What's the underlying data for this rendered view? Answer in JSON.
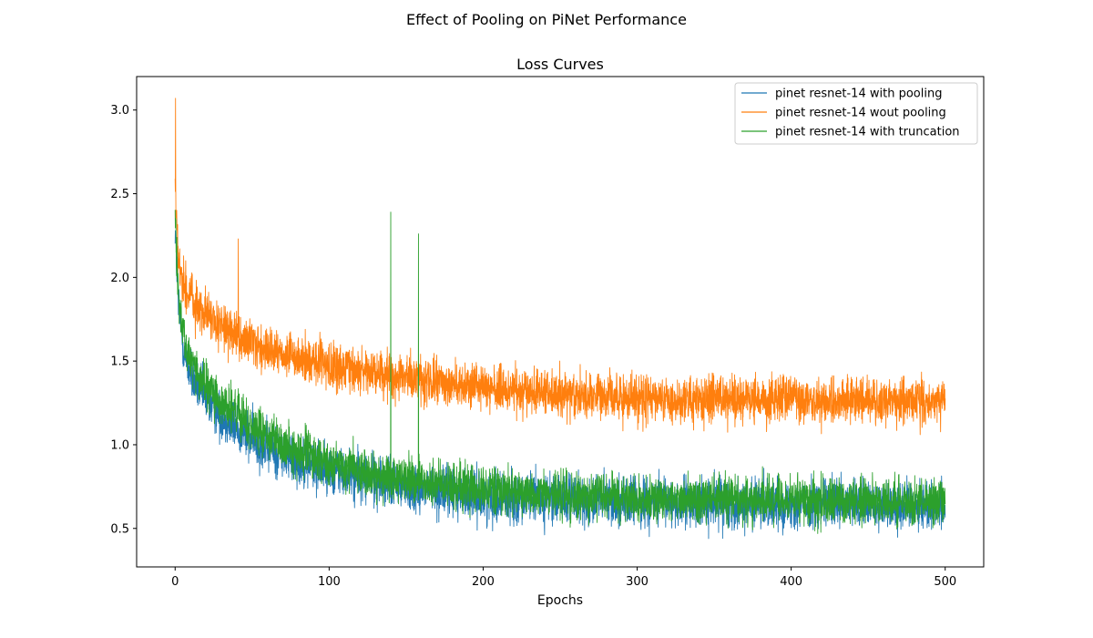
{
  "figure": {
    "suptitle": "Effect of Pooling on PiNet Performance"
  },
  "chart_data": {
    "type": "line",
    "title": "Loss Curves",
    "xlabel": "Epochs",
    "ylabel": "",
    "xlim": [
      -25,
      525
    ],
    "ylim": [
      0.27,
      3.2
    ],
    "xticks": [
      0,
      100,
      200,
      300,
      400,
      500
    ],
    "xtick_labels": [
      "0",
      "100",
      "200",
      "300",
      "400",
      "500"
    ],
    "yticks": [
      0.5,
      1.0,
      1.5,
      2.0,
      2.5,
      3.0
    ],
    "ytick_labels": [
      "0.5",
      "1.0",
      "1.5",
      "2.0",
      "2.5",
      "3.0"
    ],
    "grid": false,
    "legend_position": "upper right",
    "series": [
      {
        "name": "pinet resnet-14 with pooling",
        "color": "#1f77b4",
        "x": [
          0,
          2,
          5,
          10,
          15,
          20,
          30,
          40,
          50,
          60,
          75,
          100,
          125,
          150,
          175,
          200,
          250,
          300,
          350,
          400,
          450,
          500
        ],
        "y": [
          2.3,
          1.85,
          1.6,
          1.42,
          1.34,
          1.27,
          1.18,
          1.1,
          1.03,
          0.98,
          0.92,
          0.85,
          0.79,
          0.75,
          0.72,
          0.69,
          0.67,
          0.66,
          0.65,
          0.65,
          0.64,
          0.64
        ],
        "noise_amplitude": 0.16
      },
      {
        "name": "pinet resnet-14 wout pooling",
        "color": "#ff7f0e",
        "x": [
          0,
          2,
          5,
          10,
          15,
          20,
          30,
          40,
          50,
          60,
          75,
          100,
          125,
          150,
          175,
          200,
          250,
          300,
          350,
          400,
          450,
          500
        ],
        "y": [
          2.55,
          2.1,
          1.98,
          1.88,
          1.82,
          1.78,
          1.7,
          1.64,
          1.6,
          1.56,
          1.52,
          1.47,
          1.43,
          1.4,
          1.37,
          1.34,
          1.3,
          1.28,
          1.27,
          1.27,
          1.26,
          1.26
        ],
        "noise_amplitude": 0.15
      },
      {
        "name": "pinet resnet-14 with truncation",
        "color": "#2ca02c",
        "x": [
          0,
          2,
          5,
          10,
          15,
          20,
          30,
          40,
          50,
          60,
          75,
          100,
          125,
          150,
          175,
          200,
          250,
          300,
          350,
          400,
          450,
          500
        ],
        "y": [
          2.35,
          1.9,
          1.68,
          1.5,
          1.42,
          1.35,
          1.25,
          1.18,
          1.1,
          1.05,
          0.98,
          0.9,
          0.83,
          0.79,
          0.76,
          0.73,
          0.7,
          0.68,
          0.67,
          0.67,
          0.66,
          0.66
        ],
        "noise_amplitude": 0.15
      }
    ],
    "spikes": [
      {
        "series": 1,
        "x": 0.2,
        "y": 3.07
      },
      {
        "series": 2,
        "x": 140,
        "y": 2.39
      },
      {
        "series": 2,
        "x": 158,
        "y": 2.26
      },
      {
        "series": 1,
        "x": 41,
        "y": 2.23
      }
    ]
  }
}
